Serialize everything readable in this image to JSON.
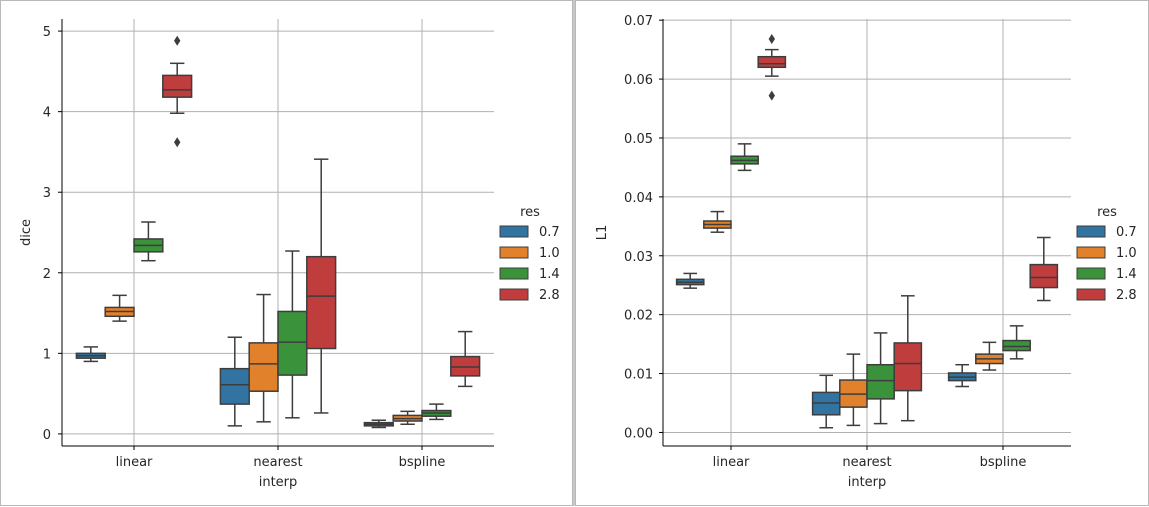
{
  "chart_data": [
    {
      "type": "box",
      "xlabel": "interp",
      "ylabel": "dice",
      "categories": [
        "linear",
        "nearest",
        "bspline"
      ],
      "ylim": [
        -0.15,
        5.15
      ],
      "yticks": [
        0,
        1,
        2,
        3,
        4,
        5
      ],
      "tick_labels": [
        "0",
        "1",
        "2",
        "3",
        "4",
        "5"
      ],
      "grid": true,
      "legend": {
        "title": "res",
        "position": "right"
      },
      "series": [
        {
          "name": "0.7",
          "color": "#3274a1",
          "boxes": [
            {
              "whislo": 0.9,
              "q1": 0.94,
              "med": 0.97,
              "q3": 1.0,
              "whishi": 1.08,
              "fliers": []
            },
            {
              "whislo": 0.1,
              "q1": 0.37,
              "med": 0.61,
              "q3": 0.81,
              "whishi": 1.2,
              "fliers": []
            },
            {
              "whislo": 0.08,
              "q1": 0.1,
              "med": 0.12,
              "q3": 0.14,
              "whishi": 0.17,
              "fliers": []
            }
          ]
        },
        {
          "name": "1.0",
          "color": "#e1812c",
          "boxes": [
            {
              "whislo": 1.4,
              "q1": 1.46,
              "med": 1.52,
              "q3": 1.57,
              "whishi": 1.72,
              "fliers": []
            },
            {
              "whislo": 0.15,
              "q1": 0.53,
              "med": 0.87,
              "q3": 1.13,
              "whishi": 1.73,
              "fliers": []
            },
            {
              "whislo": 0.12,
              "q1": 0.16,
              "med": 0.19,
              "q3": 0.23,
              "whishi": 0.28,
              "fliers": []
            }
          ]
        },
        {
          "name": "1.4",
          "color": "#3a923a",
          "boxes": [
            {
              "whislo": 2.15,
              "q1": 2.26,
              "med": 2.34,
              "q3": 2.42,
              "whishi": 2.63,
              "fliers": []
            },
            {
              "whislo": 0.2,
              "q1": 0.73,
              "med": 1.14,
              "q3": 1.52,
              "whishi": 2.27,
              "fliers": []
            },
            {
              "whislo": 0.18,
              "q1": 0.22,
              "med": 0.26,
              "q3": 0.29,
              "whishi": 0.37,
              "fliers": []
            }
          ]
        },
        {
          "name": "2.8",
          "color": "#c03d3e",
          "boxes": [
            {
              "whislo": 3.98,
              "q1": 4.18,
              "med": 4.27,
              "q3": 4.45,
              "whishi": 4.6,
              "fliers": [
                3.62,
                4.88
              ]
            },
            {
              "whislo": 0.26,
              "q1": 1.06,
              "med": 1.71,
              "q3": 2.2,
              "whishi": 3.41,
              "fliers": []
            },
            {
              "whislo": 0.59,
              "q1": 0.72,
              "med": 0.83,
              "q3": 0.96,
              "whishi": 1.27,
              "fliers": []
            }
          ]
        }
      ]
    },
    {
      "type": "box",
      "xlabel": "interp",
      "ylabel": "L1",
      "categories": [
        "linear",
        "nearest",
        "bspline"
      ],
      "ylim": [
        -0.0023,
        0.0702
      ],
      "yticks": [
        0,
        0.01,
        0.02,
        0.03,
        0.04,
        0.05,
        0.06,
        0.07
      ],
      "tick_labels": [
        "0.00",
        "0.01",
        "0.02",
        "0.03",
        "0.04",
        "0.05",
        "0.06",
        "0.07"
      ],
      "grid": true,
      "legend": {
        "title": "res",
        "position": "right"
      },
      "series": [
        {
          "name": "0.7",
          "color": "#3274a1",
          "boxes": [
            {
              "whislo": 0.0245,
              "q1": 0.0251,
              "med": 0.0255,
              "q3": 0.026,
              "whishi": 0.027,
              "fliers": []
            },
            {
              "whislo": 0.0008,
              "q1": 0.003,
              "med": 0.005,
              "q3": 0.0068,
              "whishi": 0.0097,
              "fliers": []
            },
            {
              "whislo": 0.0078,
              "q1": 0.0088,
              "med": 0.0094,
              "q3": 0.0101,
              "whishi": 0.0115,
              "fliers": []
            }
          ]
        },
        {
          "name": "1.0",
          "color": "#e1812c",
          "boxes": [
            {
              "whislo": 0.034,
              "q1": 0.0347,
              "med": 0.0353,
              "q3": 0.0359,
              "whishi": 0.0375,
              "fliers": []
            },
            {
              "whislo": 0.0012,
              "q1": 0.0043,
              "med": 0.0065,
              "q3": 0.0089,
              "whishi": 0.0133,
              "fliers": []
            },
            {
              "whislo": 0.0106,
              "q1": 0.0117,
              "med": 0.0125,
              "q3": 0.0133,
              "whishi": 0.0153,
              "fliers": []
            }
          ]
        },
        {
          "name": "1.4",
          "color": "#3a923a",
          "boxes": [
            {
              "whislo": 0.0445,
              "q1": 0.0456,
              "med": 0.0462,
              "q3": 0.0469,
              "whishi": 0.049,
              "fliers": []
            },
            {
              "whislo": 0.0015,
              "q1": 0.0057,
              "med": 0.0088,
              "q3": 0.0115,
              "whishi": 0.0169,
              "fliers": []
            },
            {
              "whislo": 0.0125,
              "q1": 0.0139,
              "med": 0.0146,
              "q3": 0.0156,
              "whishi": 0.0181,
              "fliers": []
            }
          ]
        },
        {
          "name": "2.8",
          "color": "#c03d3e",
          "boxes": [
            {
              "whislo": 0.0605,
              "q1": 0.062,
              "med": 0.0626,
              "q3": 0.0638,
              "whishi": 0.065,
              "fliers": [
                0.0572,
                0.0668
              ]
            },
            {
              "whislo": 0.002,
              "q1": 0.0071,
              "med": 0.0117,
              "q3": 0.0152,
              "whishi": 0.0232,
              "fliers": []
            },
            {
              "whislo": 0.0224,
              "q1": 0.0246,
              "med": 0.0263,
              "q3": 0.0285,
              "whishi": 0.0331,
              "fliers": []
            }
          ]
        }
      ]
    }
  ]
}
